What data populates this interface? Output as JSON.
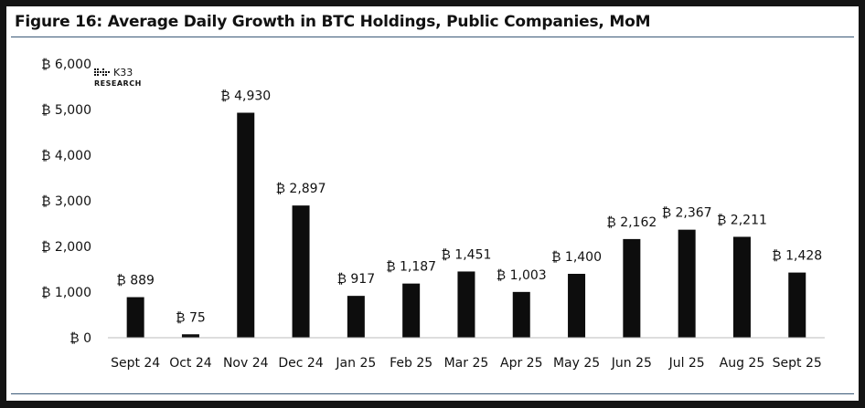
{
  "chart_data": {
    "type": "bar",
    "title": "Figure 16: Average Daily Growth in BTC Holdings, Public Companies, MoM",
    "currency_symbol": "₿",
    "categories": [
      "Sept 24",
      "Oct 24",
      "Nov 24",
      "Dec 24",
      "Jan 25",
      "Feb 25",
      "Mar 25",
      "Apr 25",
      "May 25",
      "Jun 25",
      "Jul 25",
      "Aug 25",
      "Sept 25"
    ],
    "values": [
      889,
      75,
      4930,
      2897,
      917,
      1187,
      1451,
      1003,
      1400,
      2162,
      2367,
      2211,
      1428
    ],
    "data_labels": [
      "₿ 889",
      "₿ 75",
      "₿ 4,930",
      "₿ 2,897",
      "₿ 917",
      "₿ 1,187",
      "₿ 1,451",
      "₿ 1,003",
      "₿ 1,400",
      "₿ 2,162",
      "₿ 2,367",
      "₿ 2,211",
      "₿ 1,428"
    ],
    "y_ticks": [
      0,
      1000,
      2000,
      3000,
      4000,
      5000,
      6000
    ],
    "y_tick_labels": [
      "₿ 0",
      "₿ 1,000",
      "₿ 2,000",
      "₿ 3,000",
      "₿ 4,000",
      "₿ 5,000",
      "₿ 6,000"
    ],
    "ylim": [
      0,
      6000
    ],
    "xlabel": "",
    "ylabel": "",
    "grid": false,
    "bar_color": "#0d0d0d"
  },
  "branding": {
    "logo_name": "K33",
    "logo_sub": "RESEARCH"
  }
}
